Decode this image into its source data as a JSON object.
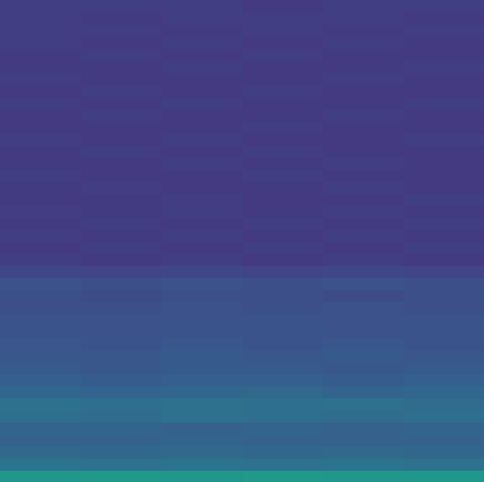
{
  "chart_data": {
    "type": "heatmap",
    "tick_labels": false,
    "zlim": [
      0,
      1
    ],
    "cells": [
      [
        0.52,
        0.53,
        0.52,
        0.53,
        0.52,
        0.52
      ],
      [
        0.38,
        0.37,
        0.38,
        0.37,
        0.38,
        0.37
      ],
      [
        0.34,
        0.33,
        0.34,
        0.33,
        0.34,
        0.33
      ],
      [
        0.31,
        0.31,
        0.32,
        0.31,
        0.31,
        0.31
      ],
      [
        0.32,
        0.32,
        0.31,
        0.32,
        0.31,
        0.32
      ],
      [
        0.36,
        0.35,
        0.37,
        0.36,
        0.35,
        0.36
      ],
      [
        0.37,
        0.36,
        0.37,
        0.36,
        0.37,
        0.35
      ],
      [
        0.33,
        0.32,
        0.33,
        0.34,
        0.32,
        0.33
      ],
      [
        0.3,
        0.29,
        0.3,
        0.3,
        0.29,
        0.3
      ],
      [
        0.28,
        0.27,
        0.28,
        0.28,
        0.27,
        0.28
      ],
      [
        0.27,
        0.27,
        0.28,
        0.27,
        0.28,
        0.27
      ],
      [
        0.27,
        0.26,
        0.27,
        0.26,
        0.27,
        0.26
      ],
      [
        0.26,
        0.25,
        0.26,
        0.26,
        0.25,
        0.26
      ],
      [
        0.25,
        0.25,
        0.25,
        0.26,
        0.25,
        0.25
      ],
      [
        0.24,
        0.24,
        0.25,
        0.24,
        0.25,
        0.24
      ],
      [
        0.24,
        0.23,
        0.24,
        0.24,
        0.23,
        0.24
      ],
      [
        0.25,
        0.24,
        0.25,
        0.24,
        0.25,
        0.24
      ],
      [
        0.21,
        0.2,
        0.21,
        0.2,
        0.21,
        0.2
      ],
      [
        0.18,
        0.17,
        0.18,
        0.17,
        0.18,
        0.17
      ],
      [
        0.17,
        0.18,
        0.17,
        0.18,
        0.17,
        0.18
      ],
      [
        0.18,
        0.17,
        0.18,
        0.17,
        0.18,
        0.17
      ],
      [
        0.17,
        0.18,
        0.17,
        0.18,
        0.17,
        0.18
      ],
      [
        0.18,
        0.17,
        0.18,
        0.17,
        0.18,
        0.17
      ],
      [
        0.17,
        0.17,
        0.18,
        0.17,
        0.17,
        0.18
      ],
      [
        0.17,
        0.18,
        0.17,
        0.17,
        0.18,
        0.17
      ],
      [
        0.18,
        0.17,
        0.17,
        0.18,
        0.17,
        0.17
      ],
      [
        0.17,
        0.17,
        0.18,
        0.17,
        0.18,
        0.17
      ],
      [
        0.17,
        0.18,
        0.17,
        0.18,
        0.17,
        0.17
      ],
      [
        0.18,
        0.17,
        0.18,
        0.17,
        0.17,
        0.18
      ],
      [
        0.17,
        0.17,
        0.17,
        0.18,
        0.17,
        0.17
      ],
      [
        0.17,
        0.18,
        0.17,
        0.17,
        0.18,
        0.17
      ],
      [
        0.18,
        0.17,
        0.18,
        0.17,
        0.17,
        0.18
      ],
      [
        0.17,
        0.18,
        0.17,
        0.18,
        0.17,
        0.17
      ],
      [
        0.18,
        0.17,
        0.17,
        0.17,
        0.18,
        0.17
      ],
      [
        0.17,
        0.17,
        0.18,
        0.17,
        0.17,
        0.18
      ],
      [
        0.17,
        0.18,
        0.17,
        0.18,
        0.17,
        0.17
      ],
      [
        0.18,
        0.17,
        0.18,
        0.17,
        0.18,
        0.17
      ],
      [
        0.18,
        0.18,
        0.17,
        0.18,
        0.17,
        0.18
      ],
      [
        0.18,
        0.17,
        0.18,
        0.18,
        0.18,
        0.17
      ],
      [
        0.18,
        0.18,
        0.18,
        0.17,
        0.18,
        0.18
      ]
    ]
  }
}
